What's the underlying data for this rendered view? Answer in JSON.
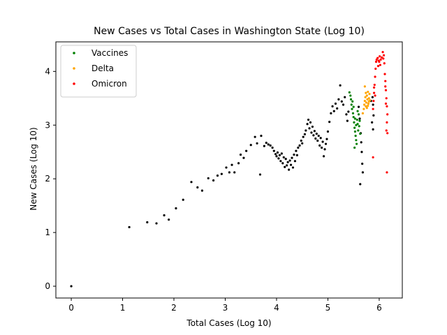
{
  "chart_data": {
    "type": "scatter",
    "title": "New Cases vs Total Cases in Washington State (Log 10)",
    "xlabel": "Total Cases (Log 10)",
    "ylabel": "New Cases (Log 10)",
    "xlim": [
      -0.3,
      6.45
    ],
    "ylim": [
      -0.22,
      4.55
    ],
    "xticks": [
      "0",
      "1",
      "2",
      "3",
      "4",
      "5",
      "6"
    ],
    "yticks": [
      "0",
      "1",
      "2",
      "3",
      "4"
    ],
    "legend_position": "upper-left",
    "series": [
      {
        "name": "",
        "color": "#000000",
        "points": [
          [
            0.0,
            0.0
          ],
          [
            1.13,
            1.1
          ],
          [
            1.48,
            1.19
          ],
          [
            1.66,
            1.17
          ],
          [
            1.81,
            1.32
          ],
          [
            1.9,
            1.24
          ],
          [
            2.04,
            1.45
          ],
          [
            2.18,
            1.61
          ],
          [
            2.34,
            1.94
          ],
          [
            2.46,
            1.84
          ],
          [
            2.55,
            1.78
          ],
          [
            2.67,
            2.01
          ],
          [
            2.77,
            1.97
          ],
          [
            2.85,
            2.06
          ],
          [
            2.93,
            2.09
          ],
          [
            3.02,
            2.21
          ],
          [
            3.08,
            2.12
          ],
          [
            3.13,
            2.26
          ],
          [
            3.18,
            2.12
          ],
          [
            3.26,
            2.29
          ],
          [
            3.3,
            2.45
          ],
          [
            3.36,
            2.39
          ],
          [
            3.41,
            2.52
          ],
          [
            3.5,
            2.63
          ],
          [
            3.58,
            2.78
          ],
          [
            3.62,
            2.66
          ],
          [
            3.68,
            2.08
          ],
          [
            3.7,
            2.8
          ],
          [
            3.76,
            2.61
          ],
          [
            3.8,
            2.67
          ],
          [
            3.84,
            2.64
          ],
          [
            3.88,
            2.62
          ],
          [
            3.92,
            2.58
          ],
          [
            3.95,
            2.52
          ],
          [
            3.98,
            2.46
          ],
          [
            4.0,
            2.42
          ],
          [
            4.02,
            2.49
          ],
          [
            4.04,
            2.38
          ],
          [
            4.06,
            2.44
          ],
          [
            4.08,
            2.33
          ],
          [
            4.1,
            2.47
          ],
          [
            4.12,
            2.29
          ],
          [
            4.14,
            2.4
          ],
          [
            4.16,
            2.22
          ],
          [
            4.18,
            2.37
          ],
          [
            4.2,
            2.25
          ],
          [
            4.22,
            2.31
          ],
          [
            4.24,
            2.17
          ],
          [
            4.26,
            2.34
          ],
          [
            4.28,
            2.26
          ],
          [
            4.3,
            2.39
          ],
          [
            4.32,
            2.21
          ],
          [
            4.34,
            2.45
          ],
          [
            4.36,
            2.33
          ],
          [
            4.38,
            2.52
          ],
          [
            4.4,
            2.44
          ],
          [
            4.42,
            2.58
          ],
          [
            4.45,
            2.62
          ],
          [
            4.48,
            2.71
          ],
          [
            4.5,
            2.66
          ],
          [
            4.52,
            2.78
          ],
          [
            4.55,
            2.83
          ],
          [
            4.57,
            2.9
          ],
          [
            4.6,
            3.02
          ],
          [
            4.62,
            3.1
          ],
          [
            4.64,
            2.94
          ],
          [
            4.66,
            3.05
          ],
          [
            4.68,
            2.86
          ],
          [
            4.7,
            2.97
          ],
          [
            4.72,
            2.81
          ],
          [
            4.74,
            2.89
          ],
          [
            4.76,
            2.75
          ],
          [
            4.78,
            2.84
          ],
          [
            4.8,
            2.71
          ],
          [
            4.82,
            2.8
          ],
          [
            4.84,
            2.62
          ],
          [
            4.86,
            2.76
          ],
          [
            4.88,
            2.58
          ],
          [
            4.9,
            2.69
          ],
          [
            4.92,
            2.42
          ],
          [
            4.94,
            2.55
          ],
          [
            4.96,
            2.65
          ],
          [
            4.98,
            2.74
          ],
          [
            5.0,
            2.88
          ],
          [
            5.03,
            3.06
          ],
          [
            5.06,
            3.22
          ],
          [
            5.09,
            3.35
          ],
          [
            5.12,
            3.26
          ],
          [
            5.15,
            3.4
          ],
          [
            5.18,
            3.31
          ],
          [
            5.21,
            3.48
          ],
          [
            5.24,
            3.74
          ],
          [
            5.27,
            3.44
          ],
          [
            5.3,
            3.38
          ],
          [
            5.33,
            3.52
          ],
          [
            5.36,
            3.2
          ],
          [
            5.38,
            3.08
          ],
          [
            5.4,
            3.25
          ],
          [
            5.6,
            3.34
          ],
          [
            5.62,
            3.12
          ],
          [
            5.64,
            2.85
          ],
          [
            5.66,
            2.5
          ],
          [
            5.67,
            2.28
          ],
          [
            5.68,
            2.12
          ],
          [
            5.63,
            1.9
          ],
          [
            5.65,
            2.68
          ],
          [
            5.87,
            3.52
          ],
          [
            5.88,
            3.38
          ],
          [
            5.89,
            3.18
          ],
          [
            5.86,
            3.05
          ],
          [
            5.88,
            2.92
          ],
          [
            5.84,
            3.45
          ]
        ]
      },
      {
        "name": "Vaccines",
        "color": "#008000",
        "points": [
          [
            5.42,
            3.61
          ],
          [
            5.44,
            3.55
          ],
          [
            5.45,
            3.48
          ],
          [
            5.46,
            3.38
          ],
          [
            5.47,
            3.3
          ],
          [
            5.48,
            3.44
          ],
          [
            5.49,
            3.22
          ],
          [
            5.5,
            3.15
          ],
          [
            5.51,
            3.05
          ],
          [
            5.52,
            2.95
          ],
          [
            5.53,
            2.88
          ],
          [
            5.54,
            2.8
          ],
          [
            5.55,
            2.72
          ],
          [
            5.52,
            2.58
          ],
          [
            5.56,
            2.65
          ],
          [
            5.57,
            3.1
          ],
          [
            5.58,
            3.02
          ],
          [
            5.59,
            2.9
          ],
          [
            5.6,
            3.2
          ],
          [
            5.61,
            2.98
          ],
          [
            5.62,
            3.08
          ],
          [
            5.63,
            2.84
          ],
          [
            5.55,
            3.0
          ],
          [
            5.58,
            3.26
          ],
          [
            5.5,
            3.34
          ],
          [
            5.53,
            3.12
          ]
        ]
      },
      {
        "name": "Delta",
        "color": "#FFA500",
        "points": [
          [
            5.7,
            3.3
          ],
          [
            5.71,
            3.38
          ],
          [
            5.72,
            3.45
          ],
          [
            5.73,
            3.52
          ],
          [
            5.74,
            3.6
          ],
          [
            5.75,
            3.42
          ],
          [
            5.76,
            3.55
          ],
          [
            5.77,
            3.48
          ],
          [
            5.78,
            3.62
          ],
          [
            5.79,
            3.4
          ],
          [
            5.8,
            3.5
          ],
          [
            5.81,
            3.58
          ],
          [
            5.82,
            3.46
          ],
          [
            5.72,
            3.72
          ],
          [
            5.74,
            3.35
          ],
          [
            5.76,
            3.32
          ],
          [
            5.68,
            3.22
          ],
          [
            5.78,
            3.36
          ],
          [
            5.8,
            3.44
          ]
        ]
      },
      {
        "name": "Omicron",
        "color": "#FF0000",
        "points": [
          [
            5.88,
            3.3
          ],
          [
            5.89,
            3.45
          ],
          [
            5.9,
            3.6
          ],
          [
            5.91,
            3.75
          ],
          [
            5.92,
            3.9
          ],
          [
            5.93,
            4.05
          ],
          [
            5.94,
            4.18
          ],
          [
            5.95,
            4.22
          ],
          [
            5.97,
            4.25
          ],
          [
            5.99,
            4.2
          ],
          [
            6.01,
            4.28
          ],
          [
            6.03,
            4.22
          ],
          [
            6.05,
            4.26
          ],
          [
            6.07,
            4.36
          ],
          [
            6.09,
            4.3
          ],
          [
            6.1,
            4.15
          ],
          [
            6.11,
            3.95
          ],
          [
            6.12,
            3.82
          ],
          [
            6.13,
            3.65
          ],
          [
            6.14,
            3.5
          ],
          [
            6.15,
            3.35
          ],
          [
            6.16,
            3.2
          ],
          [
            6.15,
            3.05
          ],
          [
            6.14,
            2.9
          ],
          [
            6.16,
            2.85
          ],
          [
            6.15,
            2.12
          ],
          [
            5.88,
            2.4
          ],
          [
            5.98,
            4.1
          ],
          [
            6.02,
            4.12
          ],
          [
            6.08,
            4.24
          ],
          [
            6.12,
            3.72
          ],
          [
            6.13,
            3.4
          ],
          [
            5.9,
            3.7
          ],
          [
            5.92,
            3.55
          ],
          [
            6.0,
            4.18
          ]
        ]
      }
    ]
  }
}
